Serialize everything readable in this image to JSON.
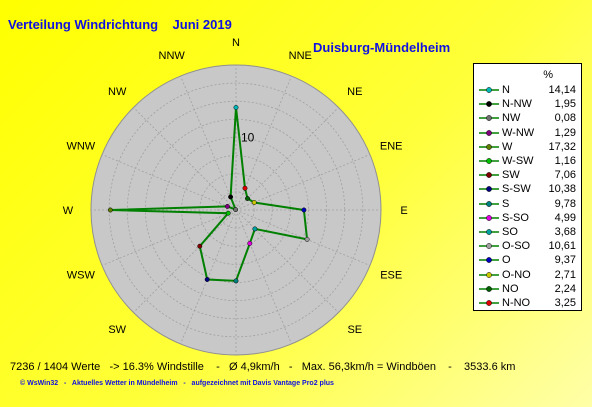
{
  "title": "Verteilung Windrichtung    Juni 2019",
  "station": "Duisburg-Mündelheim",
  "legend_unit": "%",
  "footer": "7236 / 1404 Werte   -> 16.3% Windstille    -   Ø 4,9km/h   -   Max. 56,3km/h = Windböen    -    3533.6 km",
  "credit": "© WsWin32   -   Aktuelles Wetter in Mündelheim   -   aufgezeichnet mit Davis Vantage Pro2 plus",
  "chart_data": {
    "type": "radar",
    "title": "Verteilung Windrichtung    Juni 2019",
    "unit": "%",
    "rlim": [
      0,
      20
    ],
    "r_ticks": [
      {
        "value": 10,
        "label": "10"
      }
    ],
    "series_color": "#008000",
    "directions": [
      "N",
      "NNE",
      "NE",
      "ENE",
      "E",
      "ESE",
      "SE",
      "SSE",
      "S",
      "SSW",
      "SW",
      "WSW",
      "W",
      "WNW",
      "NW",
      "NNW"
    ],
    "values": [
      14.14,
      3.25,
      2.24,
      2.71,
      9.37,
      10.61,
      3.68,
      4.99,
      9.78,
      10.38,
      7.06,
      1.16,
      17.32,
      1.29,
      0.08,
      1.95
    ],
    "legend": [
      {
        "name": "N",
        "value": "14,14",
        "color": "#00b8b8"
      },
      {
        "name": "N-NW",
        "value": "1,95",
        "color": "#000000"
      },
      {
        "name": "NW",
        "value": "0,08",
        "color": "#707070"
      },
      {
        "name": "W-NW",
        "value": "1,29",
        "color": "#800080"
      },
      {
        "name": "W",
        "value": "17,32",
        "color": "#608000"
      },
      {
        "name": "W-SW",
        "value": "1,16",
        "color": "#00c000"
      },
      {
        "name": "SW",
        "value": "7,06",
        "color": "#800000"
      },
      {
        "name": "S-SW",
        "value": "10,38",
        "color": "#000080"
      },
      {
        "name": "S",
        "value": "9,78",
        "color": "#008080"
      },
      {
        "name": "S-SO",
        "value": "4,99",
        "color": "#e000e0"
      },
      {
        "name": "SO",
        "value": "3,68",
        "color": "#00a0a0"
      },
      {
        "name": "O-SO",
        "value": "10,61",
        "color": "#a0a0a0"
      },
      {
        "name": "O",
        "value": "9,37",
        "color": "#0000c0"
      },
      {
        "name": "O-NO",
        "value": "2,71",
        "color": "#c8c800"
      },
      {
        "name": "NO",
        "value": "2,24",
        "color": "#006000"
      },
      {
        "name": "N-NO",
        "value": "3,25",
        "color": "#e00000"
      }
    ]
  }
}
